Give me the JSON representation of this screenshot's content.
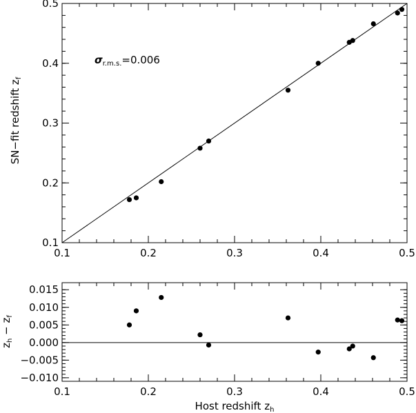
{
  "chart_data": [
    {
      "type": "scatter",
      "panel": "top",
      "ylabel": "SN−fit redshift z",
      "ylabel_sub": "f",
      "xlim": [
        0.1,
        0.5
      ],
      "ylim": [
        0.1,
        0.5
      ],
      "x_ticks": [
        "0.1",
        "0.2",
        "0.3",
        "0.4",
        "0.5"
      ],
      "y_ticks": [
        "0.1",
        "0.2",
        "0.3",
        "0.4",
        "0.5"
      ],
      "annotation": {
        "sigma": "σ",
        "sub": "r.m.s.",
        "value": "=0.006"
      },
      "reference_line": "y = x",
      "series": [
        {
          "x": [
            0.178,
            0.186,
            0.215,
            0.26,
            0.27,
            0.362,
            0.397,
            0.433,
            0.437,
            0.461,
            0.489,
            0.494
          ],
          "y": [
            0.172,
            0.175,
            0.202,
            0.258,
            0.27,
            0.355,
            0.4,
            0.435,
            0.438,
            0.466,
            0.484,
            0.49
          ]
        }
      ]
    },
    {
      "type": "scatter",
      "panel": "bottom",
      "xlabel": "Host redshift z",
      "xlabel_sub": "h",
      "ylabel": "z",
      "ylabel_sub1": "h",
      "ylabel_mid": " − z",
      "ylabel_sub2": "f",
      "xlim": [
        0.1,
        0.5
      ],
      "ylim": [
        -0.011,
        0.017
      ],
      "x_ticks": [
        "0.1",
        "0.2",
        "0.3",
        "0.4",
        "0.5"
      ],
      "y_ticks": [
        "0.015",
        "0.010",
        "0.005",
        "0.000",
        "−0.005",
        "−0.010"
      ],
      "reference_line": "y = 0",
      "series": [
        {
          "x": [
            0.178,
            0.186,
            0.215,
            0.26,
            0.27,
            0.362,
            0.397,
            0.433,
            0.437,
            0.461,
            0.489,
            0.494
          ],
          "y": [
            0.005,
            0.009,
            0.0128,
            0.0022,
            -0.0007,
            0.007,
            -0.0027,
            -0.0018,
            -0.001,
            -0.0043,
            0.0064,
            0.0062
          ],
          "yerr": [
            0.0006,
            0.0006,
            0.0006,
            0.0006,
            0.0006,
            0.0006,
            0.0006,
            0.0006,
            0.0006,
            0.0006,
            0.0006,
            0.0006
          ]
        }
      ]
    }
  ]
}
